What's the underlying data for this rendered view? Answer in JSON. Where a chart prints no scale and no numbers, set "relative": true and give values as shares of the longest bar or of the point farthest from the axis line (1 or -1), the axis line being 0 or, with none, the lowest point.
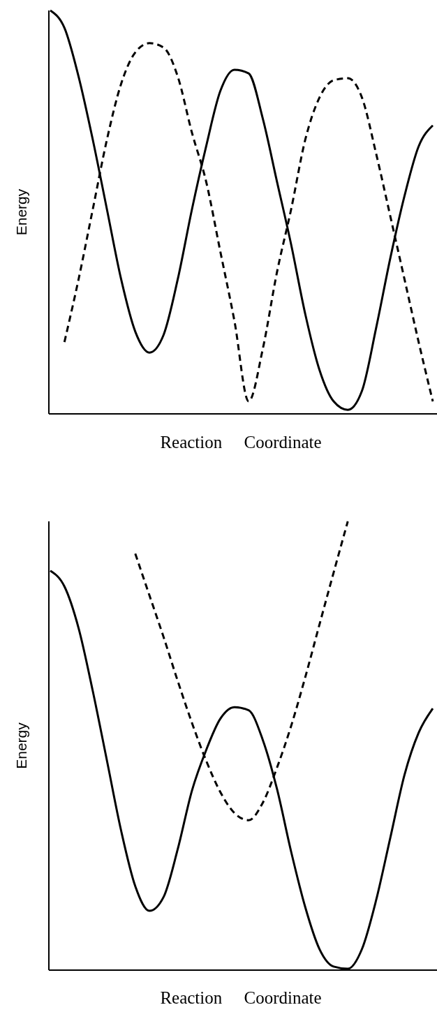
{
  "chart_data": [
    {
      "type": "line",
      "relative": true,
      "xlabel": "Reaction     Coordinate",
      "ylabel": "Energy",
      "categories": [
        null,
        null,
        null,
        null,
        null,
        null,
        null,
        null,
        null,
        null,
        null,
        null,
        null,
        null,
        null,
        null,
        null,
        null,
        null,
        null,
        null,
        null,
        null,
        null,
        null,
        null,
        null,
        null
      ],
      "series": [
        {
          "color": "#000000",
          "line_style": "solid",
          "values": [
            1.0,
            0.957,
            0.836,
            0.68,
            0.507,
            0.334,
            0.204,
            0.152,
            0.196,
            0.334,
            0.507,
            0.663,
            0.8,
            0.853,
            0.844,
            0.732,
            0.576,
            0.42,
            0.247,
            0.109,
            0.031,
            0.01,
            0.057,
            0.213,
            0.386,
            0.54,
            0.663,
            0.715
          ]
        },
        {
          "color": "#000000",
          "line_style": "dashed",
          "values": [
            null,
            0.178,
            0.334,
            0.507,
            0.68,
            0.818,
            0.896,
            0.919,
            0.908,
            0.836,
            0.697,
            0.576,
            0.403,
            0.23,
            0.031,
            0.161,
            0.351,
            0.507,
            0.68,
            0.784,
            0.827,
            0.832,
            0.784,
            0.645,
            0.49,
            0.334,
            0.178,
            0.031
          ]
        }
      ]
    },
    {
      "type": "line",
      "relative": true,
      "xlabel": "Reaction     Coordinate",
      "ylabel": "Energy",
      "categories": [
        null,
        null,
        null,
        null,
        null,
        null,
        null,
        null,
        null,
        null,
        null,
        null,
        null,
        null,
        null,
        null,
        null,
        null,
        null,
        null,
        null,
        null,
        null,
        null,
        null,
        null,
        null,
        null
      ],
      "series": [
        {
          "color": "#000000",
          "line_style": "solid",
          "values": [
            0.89,
            0.855,
            0.762,
            0.622,
            0.467,
            0.311,
            0.187,
            0.132,
            0.163,
            0.27,
            0.4,
            0.49,
            0.56,
            0.586,
            0.579,
            0.513,
            0.404,
            0.264,
            0.14,
            0.047,
            0.008,
            0.003,
            0.047,
            0.156,
            0.295,
            0.435,
            0.529,
            0.583
          ]
        },
        {
          "color": "#000000",
          "line_style": "dashed",
          "values": [
            null,
            null,
            null,
            null,
            null,
            null,
            0.928,
            0.835,
            0.742,
            0.644,
            0.551,
            0.467,
            0.397,
            0.35,
            0.334,
            0.373,
            0.451,
            0.544,
            0.653,
            0.77,
            0.886,
            1.0,
            null,
            null,
            null,
            null,
            null,
            null
          ]
        }
      ]
    }
  ]
}
